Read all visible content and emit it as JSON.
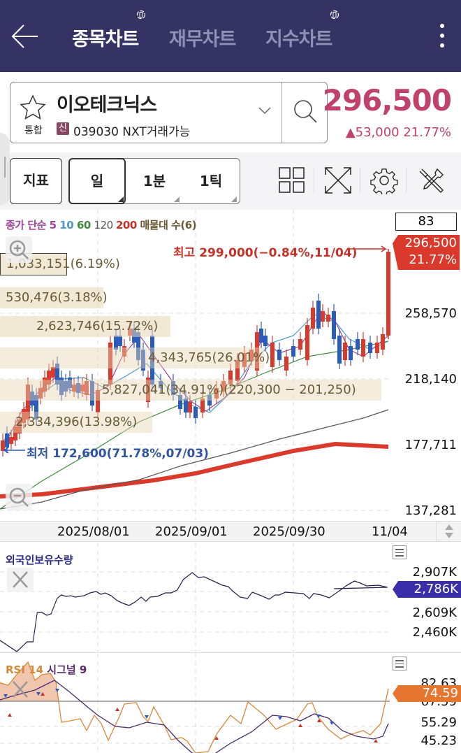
{
  "topbar": {
    "tabs": [
      {
        "label": "종목차트",
        "active": true
      },
      {
        "label": "재무차트",
        "active": false
      },
      {
        "label": "지수차트",
        "active": false
      }
    ]
  },
  "stock": {
    "name": "이오테크닉스",
    "market": "통합",
    "credit_badge": "신",
    "code_info": "039030 NXT거래가능",
    "price": "296,500",
    "change": "▲53,000  21.77%"
  },
  "toolbar": {
    "indicator_label": "지표",
    "periods": [
      "일",
      "1분",
      "1틱"
    ],
    "selected_period": "일"
  },
  "main_chart": {
    "legend": [
      {
        "text": "종가 단순 ",
        "color": "#a0439c"
      },
      {
        "text": "5 ",
        "color": "#a0439c"
      },
      {
        "text": "10 ",
        "color": "#4d9ac4"
      },
      {
        "text": "60 ",
        "color": "#3f8a3f"
      },
      {
        "text": "120 ",
        "color": "#555555"
      },
      {
        "text": "200 ",
        "color": "#c63228"
      },
      {
        "text": "매물대 수(6)",
        "color": "#6b5a36"
      }
    ],
    "count_badge": "83",
    "current_price": "296,500",
    "current_pct": "21.77%",
    "high_annotation": "최고 299,000(−0.84%,11/04)",
    "low_annotation": "최저 172,600(71.78%,07/03)",
    "y_labels": [
      "258,570",
      "218,140",
      "177,711",
      "137,281"
    ],
    "volume_profile": [
      "1,033,151(6.19%)",
      "530,476(3.18%)",
      "2,623,746(15.72%)",
      "4,343,765(26.01%)",
      "5,827,041(34.91%)(220,300 − 201,250)",
      "2,334,396(13.98%)"
    ],
    "x_labels": [
      "2025/08/01",
      "2025/09/01",
      "2025/09/30",
      "11/04"
    ]
  },
  "foreign_panel": {
    "title": "외국인보유수량",
    "y_labels": [
      "2,907K",
      "2,609K",
      "2,460K"
    ],
    "current": "2,786K"
  },
  "rsi_panel": {
    "title_rsi": "RSI 14",
    "title_signal": "시그널 9",
    "y_labels": [
      "82.63",
      "67.59",
      "55.29",
      "45.23"
    ],
    "current": "74.59"
  },
  "colors": {
    "topbar": "#343364",
    "up": "#d93a2b",
    "down": "#2a5bbf",
    "price_text": "#c0416a",
    "rsi": "#d8883a",
    "signal": "#4a2a6a",
    "foreign_tag": "#3a2fa8"
  }
}
